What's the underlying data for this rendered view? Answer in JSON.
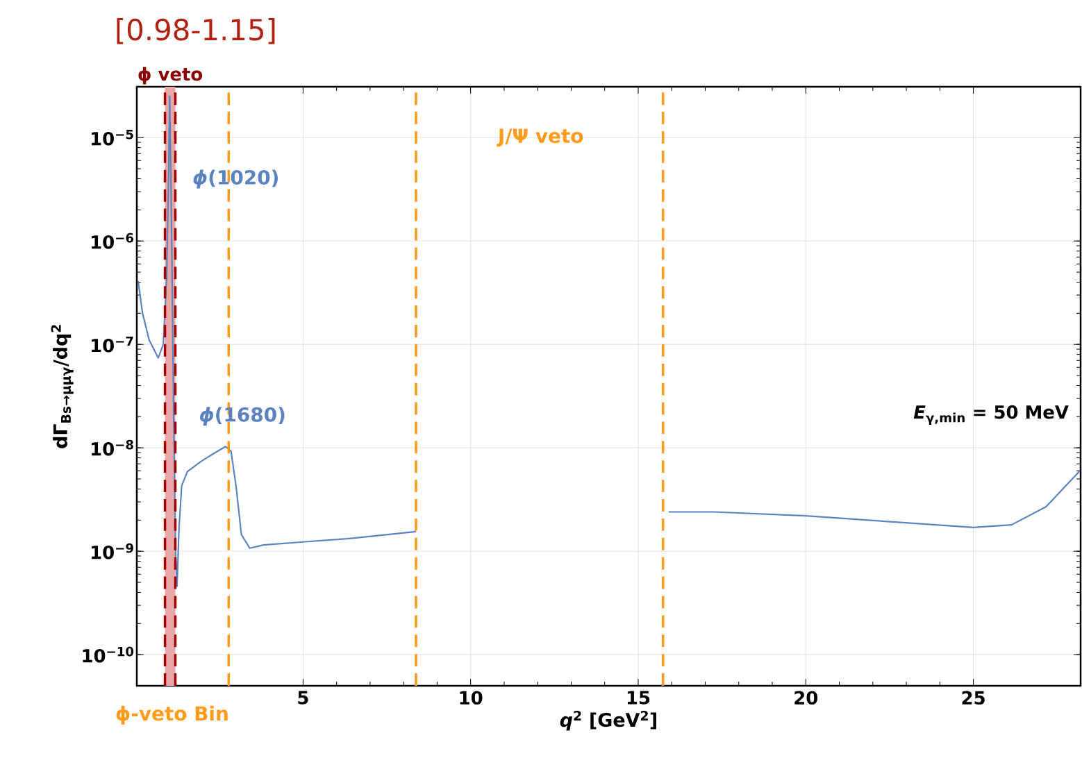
{
  "chart_data": {
    "type": "line",
    "xlabel": "*q*$^{2}$ [GeV$^{2}$]",
    "ylabel": "dΓ$_{Bs→μμγ}$/dq$^{2}$",
    "log": "y",
    "grid": true,
    "xlim": [
      0.04,
      28.2
    ],
    "ylim": [
      5e-11,
      3.1e-05
    ],
    "xticks": [
      5,
      10,
      15,
      20,
      25
    ],
    "yticks": [
      {
        "value": 1e-10,
        "label": "10$^{−10}$"
      },
      {
        "value": 1e-09,
        "label": "10$^{−9}$"
      },
      {
        "value": 1e-08,
        "label": "10$^{−8}$"
      },
      {
        "value": 1e-07,
        "label": "10$^{−7}$"
      },
      {
        "value": 1e-06,
        "label": "10$^{−6}$"
      },
      {
        "value": 1e-05,
        "label": "10$^{−5}$"
      }
    ],
    "series": [
      {
        "color": "#5b83c0",
        "x": [
          0.08,
          0.21,
          0.41,
          0.68,
          0.83,
          0.93,
          0.99,
          1.02,
          1.07,
          1.14,
          1.2,
          1.24,
          1.3,
          1.38,
          1.55,
          1.96,
          2.38,
          2.69,
          2.85,
          3.0,
          3.16,
          3.41,
          3.82,
          5.0,
          6.3,
          8.37,
          12.0,
          15.91,
          17.25,
          20.0,
          22.83,
          25.0,
          26.14,
          27.17,
          28.16
        ],
        "values": [
          4.1e-07,
          2e-07,
          1.1e-07,
          7.4e-08,
          1e-07,
          4.4e-07,
          4.5e-06,
          2.5e-05,
          2.1e-06,
          2e-08,
          9e-10,
          4.6e-10,
          1.7e-09,
          4.3e-09,
          5.9e-09,
          7.4e-09,
          9e-09,
          1.03e-08,
          9.3e-09,
          4.3e-09,
          1.45e-09,
          1.07e-09,
          1.15e-09,
          1.23e-09,
          1.32e-09,
          1.55e-09,
          null,
          2.4e-09,
          2.4e-09,
          2.2e-09,
          1.9e-09,
          1.7e-09,
          1.8e-09,
          2.7e-09,
          5.9e-09
        ]
      }
    ],
    "bands": [
      {
        "axis": "x",
        "from": 0.88,
        "to": 1.19,
        "label": "ϕ veto",
        "color": "#e8a8a8"
      }
    ],
    "ref_lines": [
      {
        "axis": "x",
        "value": 0.88,
        "color": "#a00000",
        "line_style": "dashed"
      },
      {
        "axis": "x",
        "value": 1.19,
        "color": "#a00000",
        "line_style": "dashed"
      },
      {
        "axis": "x",
        "value": 2.78,
        "color": "#ff9a1a",
        "line_style": "dashed"
      },
      {
        "axis": "x",
        "value": 8.37,
        "color": "#ff9a1a",
        "line_style": "dashed"
      },
      {
        "axis": "x",
        "value": 15.74,
        "color": "#ff9a1a",
        "line_style": "dashed"
      }
    ],
    "annotations": [
      "[0.98-1.15]",
      "*ϕ*(1020)",
      "*ϕ*(1680)",
      "J/Ψ veto",
      "*E*$_{γ,min}$ = 50 MeV",
      "ϕ-veto Bin"
    ]
  }
}
